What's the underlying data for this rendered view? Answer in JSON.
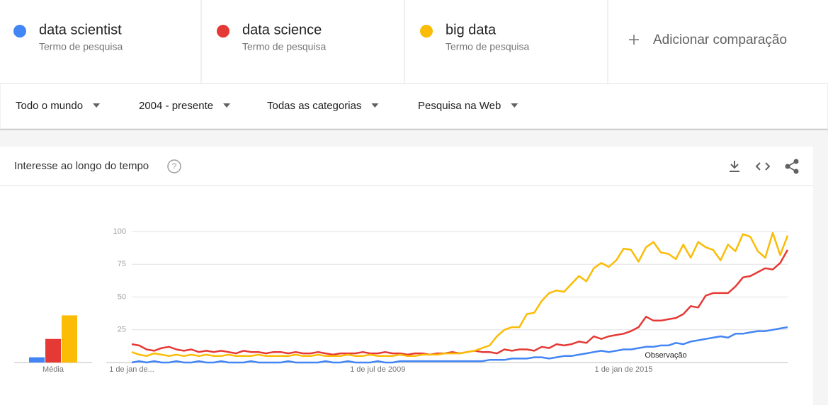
{
  "header": {
    "term_subtitles": [
      "Termo de pesquisa",
      "Termo de pesquisa",
      "Termo de pesquisa"
    ],
    "add_comparison": "Adicionar comparação"
  },
  "filters": [
    "Todo o mundo",
    "2004 - presente",
    "Todas as categorias",
    "Pesquisa na Web"
  ],
  "panel": {
    "title": "Interesse ao longo do tempo"
  },
  "chart_data": {
    "type": "line",
    "categories": [
      "1 de jan de...",
      null,
      null,
      null,
      null,
      null,
      null,
      null,
      null,
      null,
      null,
      null,
      null,
      null,
      null,
      null,
      null,
      null,
      null,
      null,
      null,
      null,
      null,
      null,
      null,
      null,
      null,
      null,
      null,
      null,
      null,
      null,
      null,
      "1 de jul de 2009",
      null,
      null,
      null,
      null,
      null,
      null,
      null,
      null,
      null,
      null,
      null,
      null,
      null,
      null,
      null,
      null,
      null,
      null,
      null,
      null,
      null,
      null,
      null,
      null,
      null,
      null,
      null,
      null,
      null,
      null,
      null,
      null,
      "1 de jan de 2015",
      null,
      null,
      null,
      null,
      null,
      null,
      null,
      null,
      null,
      null,
      null,
      null,
      null,
      null,
      null,
      null,
      null,
      null,
      null,
      null,
      null,
      null
    ],
    "series": [
      {
        "name": "data scientist",
        "color": "#4285f4",
        "values": [
          0,
          1,
          0,
          1,
          0,
          0,
          1,
          0,
          0,
          1,
          0,
          0,
          1,
          0,
          0,
          0,
          1,
          0,
          0,
          0,
          0,
          1,
          0,
          0,
          0,
          0,
          1,
          0,
          0,
          1,
          0,
          0,
          0,
          1,
          0,
          0,
          1,
          1,
          1,
          1,
          1,
          1,
          1,
          1,
          1,
          1,
          1,
          1,
          2,
          2,
          2,
          3,
          3,
          3,
          4,
          4,
          3,
          4,
          5,
          5,
          6,
          7,
          8,
          9,
          8,
          9,
          10,
          10,
          11,
          12,
          12,
          13,
          13,
          15,
          14,
          16,
          17,
          18,
          19,
          20,
          19,
          22,
          22,
          23,
          24,
          24,
          25,
          26,
          27
        ]
      },
      {
        "name": "data science",
        "color": "#e53935",
        "values": [
          14,
          13,
          10,
          9,
          11,
          12,
          10,
          9,
          10,
          8,
          9,
          8,
          9,
          8,
          7,
          9,
          8,
          8,
          7,
          8,
          8,
          7,
          8,
          7,
          7,
          8,
          7,
          6,
          7,
          7,
          7,
          8,
          7,
          7,
          8,
          7,
          7,
          6,
          7,
          7,
          6,
          7,
          7,
          8,
          7,
          8,
          9,
          8,
          8,
          7,
          10,
          9,
          10,
          10,
          9,
          12,
          11,
          14,
          13,
          14,
          16,
          15,
          20,
          18,
          20,
          21,
          22,
          24,
          27,
          35,
          32,
          32,
          33,
          34,
          37,
          43,
          42,
          51,
          53,
          53,
          53,
          58,
          65,
          66,
          69,
          72,
          71,
          76,
          86
        ]
      },
      {
        "name": "big data",
        "color": "#fbbc05",
        "values": [
          8,
          6,
          5,
          7,
          6,
          5,
          6,
          5,
          6,
          5,
          6,
          5,
          5,
          6,
          5,
          5,
          5,
          6,
          5,
          5,
          5,
          5,
          6,
          5,
          5,
          6,
          5,
          5,
          5,
          6,
          5,
          5,
          6,
          5,
          5,
          5,
          6,
          5,
          5,
          6,
          6,
          6,
          7,
          7,
          7,
          8,
          9,
          11,
          13,
          20,
          25,
          27,
          27,
          37,
          38,
          47,
          53,
          55,
          54,
          60,
          66,
          62,
          72,
          76,
          73,
          78,
          87,
          86,
          77,
          88,
          92,
          84,
          83,
          79,
          90,
          80,
          92,
          88,
          86,
          78,
          90,
          85,
          98,
          96,
          85,
          80,
          99,
          82,
          97
        ]
      }
    ],
    "averages": {
      "label": "Média",
      "values": [
        4,
        18,
        36
      ]
    },
    "annotation": "Observação",
    "ylim": [
      0,
      100
    ],
    "yticks": [
      25,
      50,
      75,
      100
    ],
    "grid": true
  }
}
